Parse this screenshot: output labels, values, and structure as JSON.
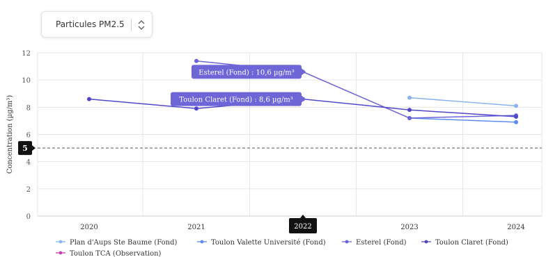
{
  "selector": {
    "value": "Particules PM2.5"
  },
  "chart_data": {
    "type": "line",
    "ylabel": "Concentration (µg/m³)",
    "ylim": [
      0,
      12
    ],
    "yticks": [
      0,
      2,
      4,
      6,
      8,
      10,
      12
    ],
    "x": [
      "2020",
      "2021",
      "2022",
      "2023",
      "2024"
    ],
    "highlight_x": "2022",
    "reference_line": {
      "value": 5,
      "label": "5"
    },
    "grid": true,
    "legend_position": "bottom",
    "series": [
      {
        "name": "Plan d'Aups Ste Baume (Fond)",
        "color": "#8ab4f0",
        "values": [
          null,
          null,
          null,
          8.7,
          8.1
        ]
      },
      {
        "name": "Toulon Valette Université (Fond)",
        "color": "#5b8def",
        "values": [
          null,
          null,
          null,
          7.2,
          6.9
        ]
      },
      {
        "name": "Esterel (Fond)",
        "color": "#6b63d8",
        "values": [
          null,
          11.4,
          10.6,
          7.2,
          7.4
        ]
      },
      {
        "name": "Toulon Claret (Fond)",
        "color": "#5046c8",
        "values": [
          8.6,
          7.9,
          8.6,
          7.8,
          7.3
        ]
      },
      {
        "name": "Toulon TCA (Observation)",
        "color": "#c73fa8",
        "values": [
          null,
          null,
          null,
          null,
          null
        ]
      }
    ],
    "tooltips": [
      {
        "text": "Esterel (Fond) : 10,6 µg/m³",
        "x": "2022",
        "value": 10.6
      },
      {
        "text": "Toulon Claret (Fond) : 8,6 µg/m³",
        "x": "2022",
        "value": 8.6
      }
    ]
  }
}
